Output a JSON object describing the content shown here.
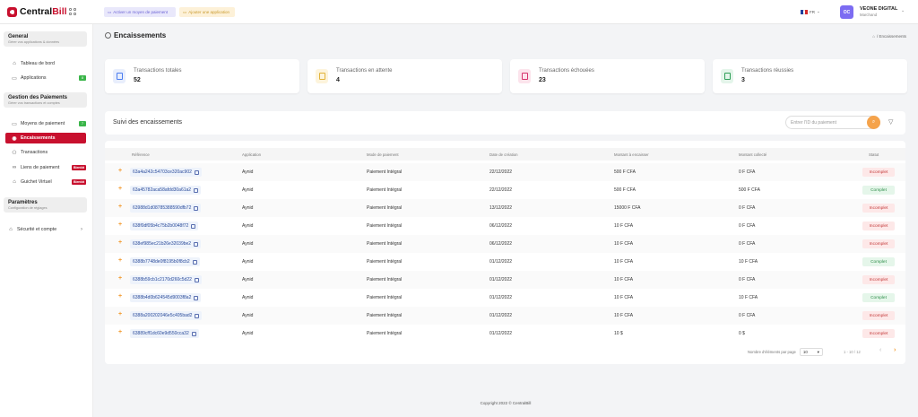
{
  "app": {
    "brand_first": "Central",
    "brand_second": "Bill"
  },
  "topbar": {
    "add_payment_label": "Activer un moyen de paiement",
    "add_app_label": "Ajouter une application",
    "language": "FR",
    "user_initials": "OC",
    "user_name": "VEONE DIGITAL",
    "user_role": "Marchand"
  },
  "sidebar": {
    "general": {
      "title": "General",
      "subtitle": "Gérer vos applications & données"
    },
    "dashboard": "Tableau de bord",
    "applications": "Applications",
    "applications_badge": "8",
    "payments": {
      "title": "Gestion des Paiements",
      "subtitle": "Gérer vos transactions et comptes"
    },
    "payment_methods": "Moyens de paiement",
    "payment_methods_badge": "7",
    "collections": "Encaissements",
    "transactions": "Transactions",
    "payment_link": "Liens de paiement",
    "payment_link_badge": "Bientôt",
    "virtual_counter": "Guichet Virtuel",
    "virtual_counter_badge": "Bientôt",
    "settings": {
      "title": "Paramètres",
      "subtitle": "Configuration de réglages"
    },
    "security": "Sécurité et compte"
  },
  "page": {
    "title": "Encaissements",
    "breadcrumb": "/ Encaissements"
  },
  "stats": [
    {
      "label": "Transactions totales",
      "value": "52",
      "color": "#4a7cf0",
      "bg": "#e8eefc"
    },
    {
      "label": "Transactions en attente",
      "value": "4",
      "color": "#e2b33a",
      "bg": "#fdf4dc"
    },
    {
      "label": "Transactions échouées",
      "value": "23",
      "color": "#d6336c",
      "bg": "#fce4ec"
    },
    {
      "label": "Transactions réussies",
      "value": "3",
      "color": "#2f9e57",
      "bg": "#e4f5ea"
    }
  ],
  "tracking": {
    "title": "Suivi des encaissements",
    "search_placeholder": "Entrer l'ID du paiement"
  },
  "table": {
    "headers": [
      "Référence",
      "Application",
      "Mode de paiement",
      "Date de création",
      "Montant à encaisser",
      "Montant collecté",
      "Statut"
    ],
    "rows": [
      [
        "63a4a242c54703ce320ac902",
        "Aynid",
        "Paiement Intégral",
        "22/12/2022",
        "500 F CFA",
        "0 F CFA",
        "Incomplet"
      ],
      [
        "63a45782aca58afdd30a61a2",
        "Aynid",
        "Paiement Intégral",
        "22/12/2022",
        "500 F CFA",
        "500 F CFA",
        "Complet"
      ],
      [
        "63988d1d08785388590dfb72",
        "Aynid",
        "Paiement Intégral",
        "13/12/2022",
        "15000 F CFA",
        "0 F CFA",
        "Incomplet"
      ],
      [
        "638f0df05b4c75b2b0048f72",
        "Aynid",
        "Paiement Intégral",
        "06/12/2022",
        "10 F CFA",
        "0 F CFA",
        "Incomplet"
      ],
      [
        "638ef985ec21b26e32039be2",
        "Aynid",
        "Paiement Intégral",
        "06/12/2022",
        "10 F CFA",
        "0 F CFA",
        "Incomplet"
      ],
      [
        "6388b7748de0f8195b0f8cb2",
        "Aynid",
        "Paiement Intégral",
        "01/12/2022",
        "10 F CFA",
        "10 F CFA",
        "Complet"
      ],
      [
        "6388b59cb1c2170d260c5d22",
        "Aynid",
        "Paiement Intégral",
        "01/12/2022",
        "10 F CFA",
        "0 F CFA",
        "Incomplet"
      ],
      [
        "6388b4d0b624545d9003f8a2",
        "Aynid",
        "Paiement Intégral",
        "01/12/2022",
        "10 F CFA",
        "10 F CFA",
        "Complet"
      ],
      [
        "6388a200202046e5c405bad2",
        "Aynid",
        "Paiement Intégral",
        "01/12/2022",
        "10 F CFA",
        "0 F CFA",
        "Incomplet"
      ],
      [
        "63889cff1dc60e9d550cca32",
        "Aynid",
        "Paiement Intégral",
        "01/12/2022",
        "10 $",
        "0 $",
        "Incomplet"
      ]
    ]
  },
  "pagination": {
    "per_page_label": "Nombre d'éléments par page",
    "per_page_value": "10",
    "range": "1 - 10 / 12"
  },
  "footer": "Copyright 2022 © CentralBill"
}
